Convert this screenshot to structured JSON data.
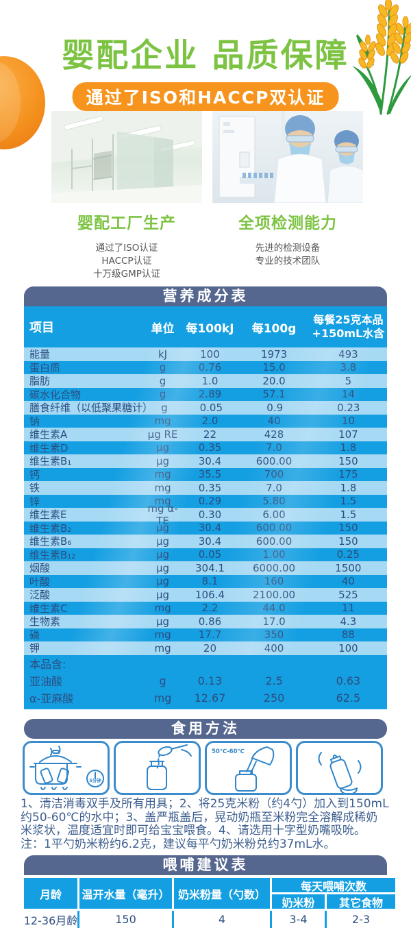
{
  "header": {
    "title": "婴配企业 品质保障",
    "badge": "通过了ISO和HACCP双认证"
  },
  "features": [
    {
      "title": "婴配工厂生产",
      "lines": [
        "通过了ISO认证",
        "HACCP认证",
        "十万级GMP认证"
      ]
    },
    {
      "title": "全项检测能力",
      "lines": [
        "先进的检测设备",
        "专业的技术团队"
      ]
    }
  ],
  "nutrition": {
    "title": "营养成分表",
    "col_item": "项目",
    "col_unit": "单位",
    "col_per100kj": "每100kJ",
    "col_per100g": "每100g",
    "col_serving_line1": "每餐25克本品",
    "col_serving_line2": "+150mL水含",
    "rows": [
      [
        "能量",
        "kJ",
        "100",
        "1973",
        "493"
      ],
      [
        "蛋白质",
        "g",
        "0.76",
        "15.0",
        "3.8"
      ],
      [
        "脂肪",
        "g",
        "1.0",
        "20.0",
        "5"
      ],
      [
        "碳水化合物",
        "g",
        "2.89",
        "57.1",
        "14"
      ],
      [
        "膳食纤维（以低聚果糖计）",
        "g",
        "0.05",
        "0.9",
        "0.23"
      ],
      [
        "钠",
        "mg",
        "2.0",
        "40",
        "10"
      ],
      [
        "维生素A",
        "μg RE",
        "22",
        "428",
        "107"
      ],
      [
        "维生素D",
        "μg",
        "0.35",
        "7.0",
        "1.8"
      ],
      [
        "维生素B₁",
        "μg",
        "30.4",
        "600.00",
        "150"
      ],
      [
        "钙",
        "mg",
        "35.5",
        "700",
        "175"
      ],
      [
        "铁",
        "mg",
        "0.35",
        "7.0",
        "1.8"
      ],
      [
        "锌",
        "mg",
        "0.29",
        "5.80",
        "1.5"
      ],
      [
        "维生素E",
        "mg α-TE",
        "0.30",
        "6.00",
        "1.5"
      ],
      [
        "维生素B₂",
        "μg",
        "30.4",
        "600.00",
        "150"
      ],
      [
        "维生素B₆",
        "μg",
        "30.4",
        "600.00",
        "150"
      ],
      [
        "维生素B₁₂",
        "μg",
        "0.05",
        "1.00",
        "0.25"
      ],
      [
        "烟酸",
        "μg",
        "304.1",
        "6000.00",
        "1500"
      ],
      [
        "叶酸",
        "μg",
        "8.1",
        "160",
        "40"
      ],
      [
        "泛酸",
        "μg",
        "106.4",
        "2100.00",
        "525"
      ],
      [
        "维生素C",
        "mg",
        "2.2",
        "44.0",
        "11"
      ],
      [
        "生物素",
        "μg",
        "0.86",
        "17.0",
        "4.3"
      ],
      [
        "磷",
        "mg",
        "17.7",
        "350",
        "88"
      ],
      [
        "钾",
        "mg",
        "20",
        "400",
        "100"
      ]
    ],
    "supplement_label": "本品含:",
    "supplement_rows": [
      [
        "亚油酸",
        "g",
        "0.13",
        "2.5",
        "0.63"
      ],
      [
        "α-亚麻酸",
        "mg",
        "12.67",
        "250",
        "62.5"
      ]
    ]
  },
  "usage": {
    "title": "食用方法",
    "timer_label": "5分钟",
    "temp_label": "50℃-60℃",
    "instructions": [
      "1、清洁消毒双手及所有用具；2、将25克米粉（约4勺）加入到150mL",
      "约50-60℃的水中；3、盖严瓶盖后，晃动奶瓶至米粉完全溶解成稀奶",
      "米浆状，温度适宜时即可给宝宝喂食。4、请选用十字型奶嘴吸吮。",
      "注：1平勺奶米粉约6.2克，建议每平勺奶米粉兑约37mL水。"
    ]
  },
  "feeding": {
    "title": "喂哺建议表",
    "col_age": "月龄",
    "col_water": "温开水量（毫升）",
    "col_powder": "奶米粉量（勺数）",
    "col_daily": "每天喂哺次数",
    "col_daily_sub1": "奶米粉",
    "col_daily_sub2": "其它食物",
    "row": {
      "age": "12-36月龄",
      "water": "150",
      "powder": "4",
      "milk": "3-4",
      "other": "2-3"
    }
  },
  "icon_names": [
    "pumpkin-icon",
    "wheat-icon",
    "factory-photo",
    "lab-photo",
    "sterilize-pot-icon",
    "scoop-powder-icon",
    "pour-water-icon",
    "shake-bottle-icon"
  ],
  "colors": {
    "green": "#7cc342",
    "orange": "#f7941d",
    "slate_bar": "#56678f",
    "bright_blue": "#149fe2",
    "light_blue": "#a6d9f4",
    "navy_text": "#2c4d7f"
  }
}
